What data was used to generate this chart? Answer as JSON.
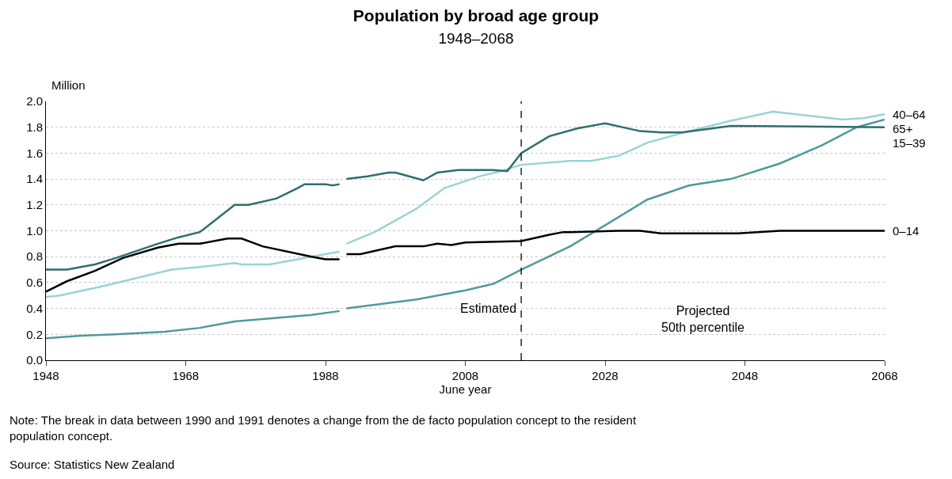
{
  "chart_data": {
    "type": "line",
    "title": "Population by broad age group",
    "subtitle": "1948–2068",
    "xlabel": "June year",
    "ylabel": "Million",
    "xlim": [
      1948,
      2068
    ],
    "xticks": [
      1948,
      1968,
      1988,
      2008,
      2028,
      2048,
      2068
    ],
    "ylim": [
      0,
      2
    ],
    "yticks": [
      {
        "value": 0,
        "label": "0.0"
      },
      0.2,
      0.4,
      0.6,
      0.8,
      {
        "value": 1,
        "label": "1.0"
      },
      1.2,
      1.4,
      1.6,
      1.8,
      {
        "value": 2,
        "label": "2.0"
      }
    ],
    "grid": "y",
    "legend": false,
    "marker": "none",
    "line_style": "solid",
    "series": [
      {
        "name": "40–64",
        "color": "#9ad3d3",
        "x": [
          1948,
          1950,
          1956,
          1966,
          1970,
          1975,
          1976,
          1980,
          1986,
          1990,
          1990.5,
          1991,
          1995,
          2001,
          2005,
          2010,
          2013,
          2016,
          2023,
          2026,
          2030,
          2034,
          2040,
          2046,
          2052,
          2057,
          2062,
          2065,
          2068
        ],
        "values": [
          0.49,
          0.5,
          0.57,
          0.7,
          0.72,
          0.75,
          0.74,
          0.74,
          0.8,
          0.84,
          null,
          0.9,
          0.99,
          1.17,
          1.33,
          1.42,
          1.46,
          1.51,
          1.54,
          1.54,
          1.58,
          1.68,
          1.77,
          1.85,
          1.92,
          1.89,
          1.86,
          1.87,
          1.9
        ]
      },
      {
        "name": "65+",
        "color": "#4f9a9a",
        "x": [
          1948,
          1953,
          1958,
          1965,
          1970,
          1975,
          1986,
          1990,
          1990.5,
          1991,
          2001,
          2008,
          2012,
          2016,
          2023,
          2027,
          2034,
          2040,
          2046,
          2053,
          2059,
          2064,
          2068
        ],
        "values": [
          0.17,
          0.19,
          0.2,
          0.22,
          0.25,
          0.3,
          0.35,
          0.38,
          null,
          0.4,
          0.47,
          0.54,
          0.59,
          0.7,
          0.88,
          1.01,
          1.24,
          1.35,
          1.4,
          1.52,
          1.66,
          1.8,
          1.86
        ]
      },
      {
        "name": "15–39",
        "color": "#2f6e6e",
        "x": [
          1948,
          1951,
          1955,
          1958,
          1964,
          1967,
          1970,
          1971,
          1975,
          1977,
          1981,
          1984,
          1985,
          1988,
          1989,
          1990,
          1990.5,
          1991,
          1994,
          1997,
          1998,
          2002,
          2004,
          2007,
          2012,
          2014,
          2016,
          2020,
          2024,
          2028,
          2033,
          2036,
          2039,
          2046,
          2068
        ],
        "values": [
          0.7,
          0.7,
          0.74,
          0.79,
          0.9,
          0.95,
          0.99,
          1.03,
          1.2,
          1.2,
          1.25,
          1.33,
          1.36,
          1.36,
          1.35,
          1.36,
          null,
          1.4,
          1.42,
          1.45,
          1.45,
          1.39,
          1.45,
          1.47,
          1.47,
          1.46,
          1.6,
          1.73,
          1.79,
          1.83,
          1.77,
          1.76,
          1.76,
          1.81,
          1.8
        ]
      },
      {
        "name": "0–14",
        "color": "#000000",
        "x": [
          1948,
          1951,
          1955,
          1959,
          1964,
          1967,
          1970,
          1974,
          1976,
          1979,
          1986,
          1988,
          1990,
          1990.5,
          1991,
          1993,
          1998,
          2002,
          2004,
          2006,
          2008,
          2016,
          2020,
          2022,
          2023,
          2030,
          2033,
          2036,
          2047,
          2053,
          2068
        ],
        "values": [
          0.53,
          0.61,
          0.69,
          0.79,
          0.87,
          0.9,
          0.9,
          0.94,
          0.94,
          0.88,
          0.8,
          0.78,
          0.78,
          null,
          0.82,
          0.82,
          0.88,
          0.88,
          0.9,
          0.89,
          0.91,
          0.92,
          0.97,
          0.99,
          0.99,
          1.0,
          1.0,
          0.98,
          0.98,
          1.0,
          1.0
        ]
      }
    ],
    "ref_lines": [
      {
        "axis": "x",
        "value": 2016,
        "color": "#000000",
        "line_style": "dashed"
      }
    ],
    "annotations": [
      "Estimated",
      "Projected\n50th percentile",
      "Note: The break in data between 1990 and 1991 denotes a change from the de facto population concept to the resident population concept.",
      "Source: Statistics New Zealand"
    ]
  }
}
